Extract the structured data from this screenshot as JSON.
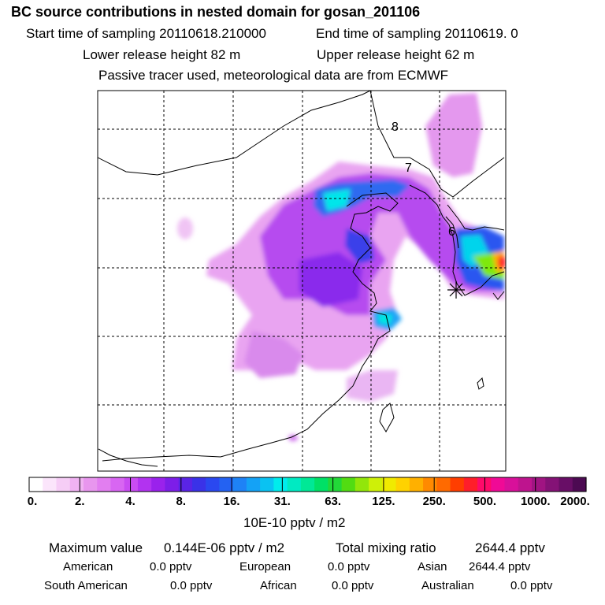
{
  "title": "BC  source contributions in nested domain for gosan_201106",
  "header": {
    "start_label": "Start time of sampling 20110618.210000",
    "end_label": "End time of sampling 20110619.     0",
    "lower_label": "Lower release height   82 m",
    "upper_label": "Upper release height   62 m",
    "tracer_note": "Passive tracer used, meteorological data are from ECMWF"
  },
  "map": {
    "contour_labels": [
      "8",
      "7",
      "6"
    ],
    "marker": "receptor-star"
  },
  "colorbar": {
    "ticks": [
      "0.",
      "2.",
      "4.",
      "8.",
      "16.",
      "31.",
      "63.",
      "125.",
      "250.",
      "500.",
      "1000.",
      "2000."
    ],
    "unit": "10E-10 pptv / m2",
    "colors": [
      "#ffffff",
      "#fbe5fb",
      "#f6cdf6",
      "#f0b2f2",
      "#e896ee",
      "#e27ef0",
      "#d866f2",
      "#c94cf2",
      "#b233f0",
      "#9a22ec",
      "#7d1ee8",
      "#5a24e6",
      "#3a32e8",
      "#2a48f0",
      "#2462f2",
      "#1e82f6",
      "#14a2f6",
      "#0ac2f2",
      "#00ecec",
      "#00eac2",
      "#00e896",
      "#00e066",
      "#22d838",
      "#52dc12",
      "#92e60a",
      "#cef008",
      "#f0ea00",
      "#ffd200",
      "#ffb000",
      "#ff8a00",
      "#ff6a00",
      "#ff3e00",
      "#ff1e2a",
      "#ff0a6a",
      "#f00a96",
      "#d8109a",
      "#be148e",
      "#a01482",
      "#841276",
      "#680e66",
      "#4c0a52"
    ]
  },
  "stats": {
    "max_label": "Maximum value",
    "max_value": "0.144E-06 pptv / m2",
    "total_label": "Total mixing ratio",
    "total_value": "2644.4 pptv"
  },
  "regions": [
    {
      "name": "American",
      "value": "0.0 pptv"
    },
    {
      "name": "European",
      "value": "0.0 pptv"
    },
    {
      "name": "Asian",
      "value": "2644.4 pptv"
    },
    {
      "name": "South American",
      "value": "0.0 pptv"
    },
    {
      "name": "African",
      "value": "0.0 pptv"
    },
    {
      "name": "Australian",
      "value": "0.0 pptv"
    }
  ]
}
